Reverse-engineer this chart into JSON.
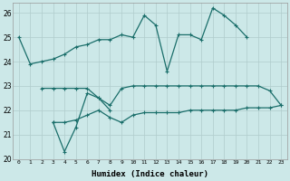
{
  "xlabel": "Humidex (Indice chaleur)",
  "xlim": [
    -0.5,
    23.5
  ],
  "ylim": [
    20,
    26.4
  ],
  "yticks": [
    20,
    21,
    22,
    23,
    24,
    25,
    26
  ],
  "xticks": [
    0,
    1,
    2,
    3,
    4,
    5,
    6,
    7,
    8,
    9,
    10,
    11,
    12,
    13,
    14,
    15,
    16,
    17,
    18,
    19,
    20,
    21,
    22,
    23
  ],
  "background_color": "#cce8e8",
  "grid_color": "#b0cccc",
  "line_color": "#1a6e6a",
  "line1_x": [
    0,
    1,
    2,
    3,
    4,
    5,
    6,
    7,
    8,
    9,
    10,
    11,
    12,
    13,
    14,
    15,
    16,
    17,
    18,
    19,
    20
  ],
  "line1_y": [
    25.0,
    23.9,
    24.0,
    24.1,
    24.3,
    24.6,
    24.7,
    24.9,
    24.9,
    25.1,
    25.0,
    25.9,
    25.5,
    23.6,
    25.1,
    25.1,
    24.9,
    26.2,
    25.9,
    25.5,
    25.0
  ],
  "line2_x": [
    2,
    3,
    4,
    5,
    6,
    7,
    8,
    9,
    10,
    11,
    12,
    13,
    14,
    15,
    16,
    17,
    18,
    19,
    20,
    21,
    22,
    23
  ],
  "line2_y": [
    22.9,
    22.9,
    22.9,
    22.9,
    22.9,
    22.5,
    22.2,
    22.9,
    23.0,
    23.0,
    23.0,
    23.0,
    23.0,
    23.0,
    23.0,
    23.0,
    23.0,
    23.0,
    23.0,
    23.0,
    22.8,
    22.2
  ],
  "line3_x": [
    3,
    4,
    5,
    6,
    7,
    8,
    9,
    10,
    11,
    12,
    13,
    14,
    15,
    16,
    17,
    18,
    19,
    20,
    21,
    22,
    23
  ],
  "line3_y": [
    21.5,
    21.5,
    21.6,
    21.8,
    22.0,
    21.7,
    21.5,
    21.8,
    21.9,
    21.9,
    21.9,
    21.9,
    22.0,
    22.0,
    22.0,
    22.0,
    22.0,
    22.1,
    22.1,
    22.1,
    22.2
  ],
  "line4_x": [
    3,
    4,
    5,
    6,
    7,
    8
  ],
  "line4_y": [
    21.5,
    20.3,
    21.3,
    22.7,
    22.5,
    22.0
  ]
}
